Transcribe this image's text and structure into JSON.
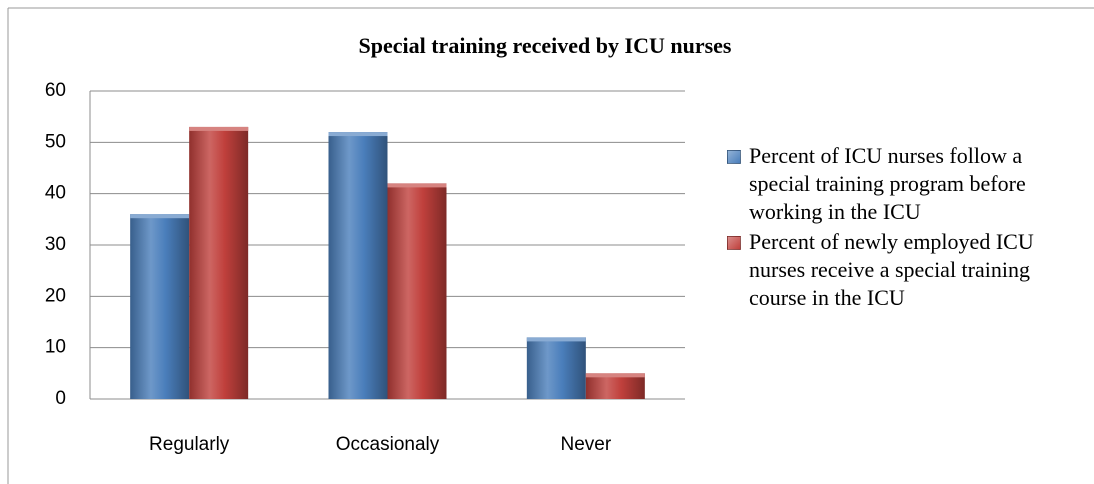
{
  "chart_data": {
    "type": "bar",
    "title": "Special training received by ICU nurses",
    "categories": [
      "Regularly",
      "Occasionaly",
      "Never"
    ],
    "series": [
      {
        "name": "Percent of ICU nurses follow a special training program before working in the ICU",
        "color": "#4a7ebb",
        "values": [
          36,
          52,
          12
        ]
      },
      {
        "name": "Percent of newly employed ICU nurses receive a special training course in the ICU",
        "color": "#c0403c",
        "values": [
          53,
          42,
          5
        ]
      }
    ],
    "ylim": [
      0,
      60
    ],
    "yticks": [
      0,
      10,
      20,
      30,
      40,
      50,
      60
    ],
    "grid": true,
    "legend": "right"
  }
}
